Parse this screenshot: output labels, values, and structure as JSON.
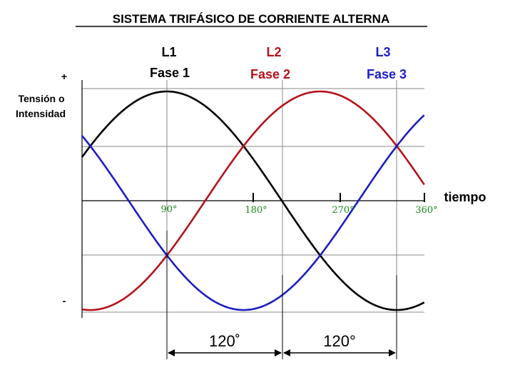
{
  "chart_data": {
    "type": "line",
    "title": "SISTEMA TRIFÁSICO DE CORRIENTE ALTERNA",
    "xlabel": "tiempo",
    "ylabel_lines": [
      "Tensión o",
      "Intensidad"
    ],
    "y_plus": "+",
    "y_minus": "-",
    "x_ticks": [
      "90°",
      "180°",
      "270°",
      "360°"
    ],
    "grid": true,
    "series": [
      {
        "name": "L1",
        "phase_label": "Fase 1",
        "color": "#000000",
        "phase_shift_deg": 0
      },
      {
        "name": "L2",
        "phase_label": "Fase 2",
        "color": "#b5121b",
        "phase_shift_deg": 120
      },
      {
        "name": "L3",
        "phase_label": "Fase 3",
        "color": "#1d1dc4",
        "phase_shift_deg": 240
      }
    ],
    "annotations": [
      {
        "text": "120˚",
        "from_series": "L1",
        "to_series": "L2"
      },
      {
        "text": "120°",
        "from_series": "L2",
        "to_series": "L3"
      }
    ]
  }
}
